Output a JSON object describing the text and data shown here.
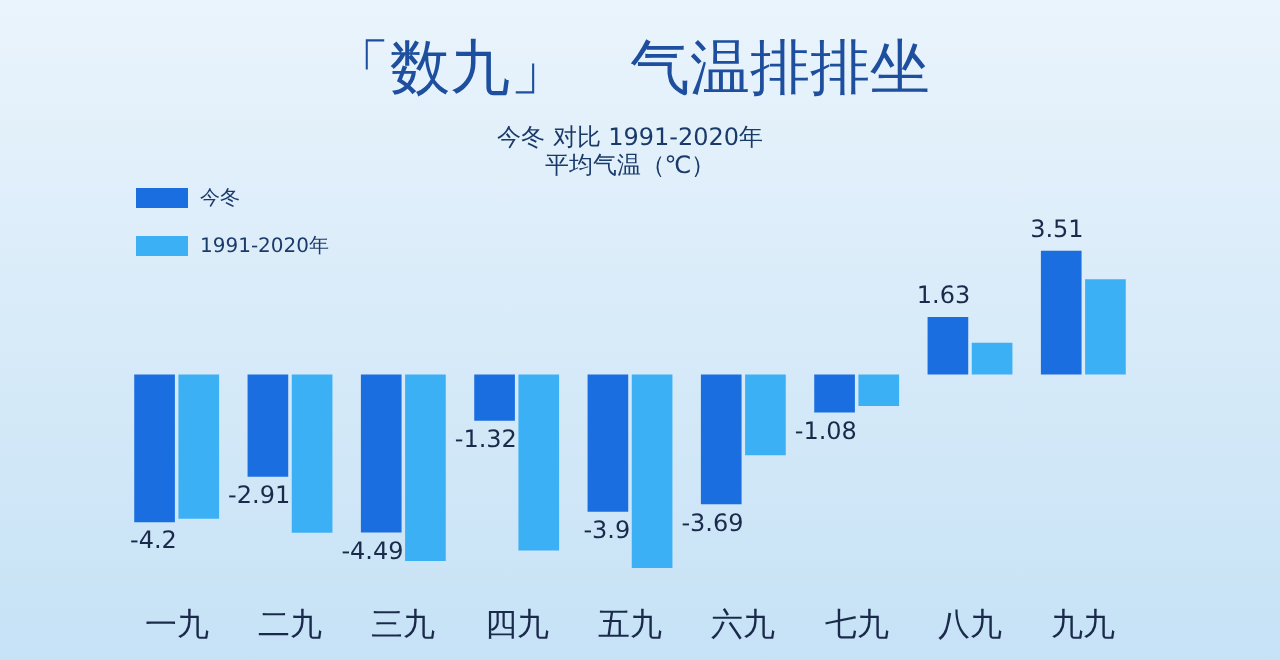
{
  "chart_data": {
    "type": "bar",
    "title": "「数九」　气温排排坐",
    "subtitle": "今冬 对比 1991-2020年",
    "annotations": [
      "平均气温（℃）"
    ],
    "categories": [
      "一九",
      "二九",
      "三九",
      "四九",
      "五九",
      "六九",
      "七九",
      "八九",
      "九九"
    ],
    "series": [
      {
        "name": "今冬",
        "color": "#1a6ee0",
        "values": [
          -4.2,
          -2.91,
          -4.49,
          -1.32,
          -3.9,
          -3.69,
          -1.08,
          1.63,
          3.51
        ],
        "value_labels": [
          "-4.2",
          "-2.91",
          "-4.49",
          "-1.32",
          "-3.9",
          "-3.69",
          "-1.08",
          "1.63",
          "3.51"
        ]
      },
      {
        "name": "1991-2020年",
        "color": "#3cb0f5",
        "values": [
          -4.1,
          -4.5,
          -5.3,
          -5.0,
          -5.5,
          -2.3,
          -0.9,
          0.9,
          2.7
        ]
      }
    ],
    "tick_labels": "x",
    "grid": false,
    "legend": "top left"
  }
}
